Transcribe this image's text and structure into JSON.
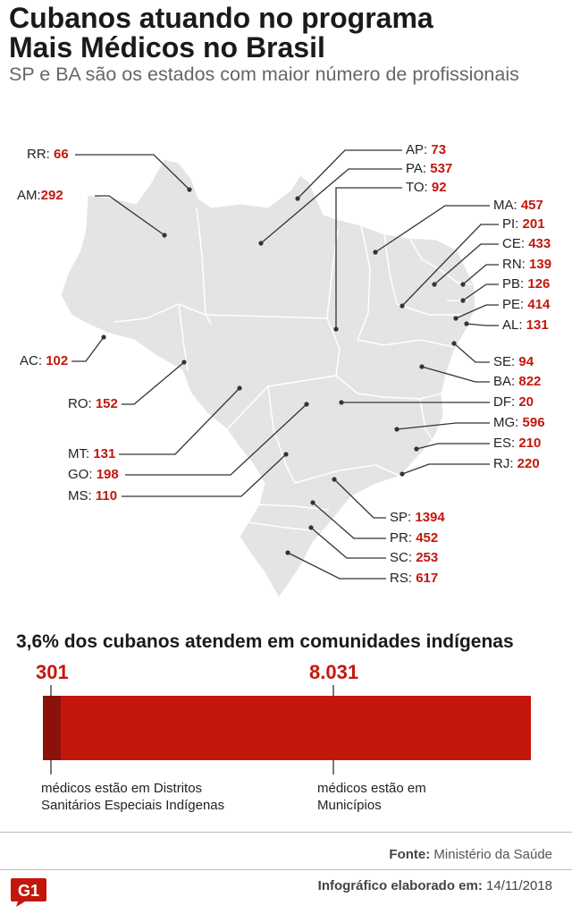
{
  "title_line1": "Cubanos atuando no programa",
  "title_line2": "Mais Médicos no Brasil",
  "subtitle": "SP e BA são os estados com maior número de profissionais",
  "states": [
    {
      "id": "RR",
      "label": "RR:",
      "value": "66"
    },
    {
      "id": "AM",
      "label": "AM:",
      "value": "292"
    },
    {
      "id": "AC",
      "label": "AC:",
      "value": "102"
    },
    {
      "id": "RO",
      "label": "RO:",
      "value": "152"
    },
    {
      "id": "MT",
      "label": "MT:",
      "value": "131"
    },
    {
      "id": "GO",
      "label": "GO:",
      "value": "198"
    },
    {
      "id": "MS",
      "label": "MS:",
      "value": "110"
    },
    {
      "id": "AP",
      "label": "AP:",
      "value": "73"
    },
    {
      "id": "PA",
      "label": "PA:",
      "value": "537"
    },
    {
      "id": "TO",
      "label": "TO:",
      "value": "92"
    },
    {
      "id": "MA",
      "label": "MA:",
      "value": "457"
    },
    {
      "id": "PI",
      "label": "PI:",
      "value": "201"
    },
    {
      "id": "CE",
      "label": "CE:",
      "value": "433"
    },
    {
      "id": "RN",
      "label": "RN:",
      "value": "139"
    },
    {
      "id": "PB",
      "label": "PB:",
      "value": "126"
    },
    {
      "id": "PE",
      "label": "PE:",
      "value": "414"
    },
    {
      "id": "AL",
      "label": "AL:",
      "value": "131"
    },
    {
      "id": "SE",
      "label": "SE:",
      "value": "94"
    },
    {
      "id": "BA",
      "label": "BA:",
      "value": "822"
    },
    {
      "id": "DF",
      "label": "DF:",
      "value": "20"
    },
    {
      "id": "MG",
      "label": "MG:",
      "value": "596"
    },
    {
      "id": "ES",
      "label": "ES:",
      "value": "210"
    },
    {
      "id": "RJ",
      "label": "RJ:",
      "value": "220"
    },
    {
      "id": "SP",
      "label": "SP:",
      "value": "1394"
    },
    {
      "id": "PR",
      "label": "PR:",
      "value": "452"
    },
    {
      "id": "SC",
      "label": "SC:",
      "value": "253"
    },
    {
      "id": "RS",
      "label": "RS:",
      "value": "617"
    }
  ],
  "indigenous": {
    "heading": "3,6% dos cubanos atendem em comunidades indígenas",
    "dsei_value": "301",
    "dsei_share": 0.036,
    "dsei_note_line1": "médicos estão em Distritos",
    "dsei_note_line2": "Sanitários Especiais Indígenas",
    "muni_value": "8.031",
    "muni_note_line1": "médicos estão em",
    "muni_note_line2": "Municípios"
  },
  "source_label": "Fonte:",
  "source_text": "Ministério da Saúde",
  "credit_label": "Infográfico elaborado em:",
  "credit_date": "14/11/2018",
  "logo_text": "G1",
  "colors": {
    "accent": "#c4170c",
    "accent_dark": "#8a1209",
    "map_fill": "#e4e4e4",
    "map_border": "#ffffff"
  }
}
